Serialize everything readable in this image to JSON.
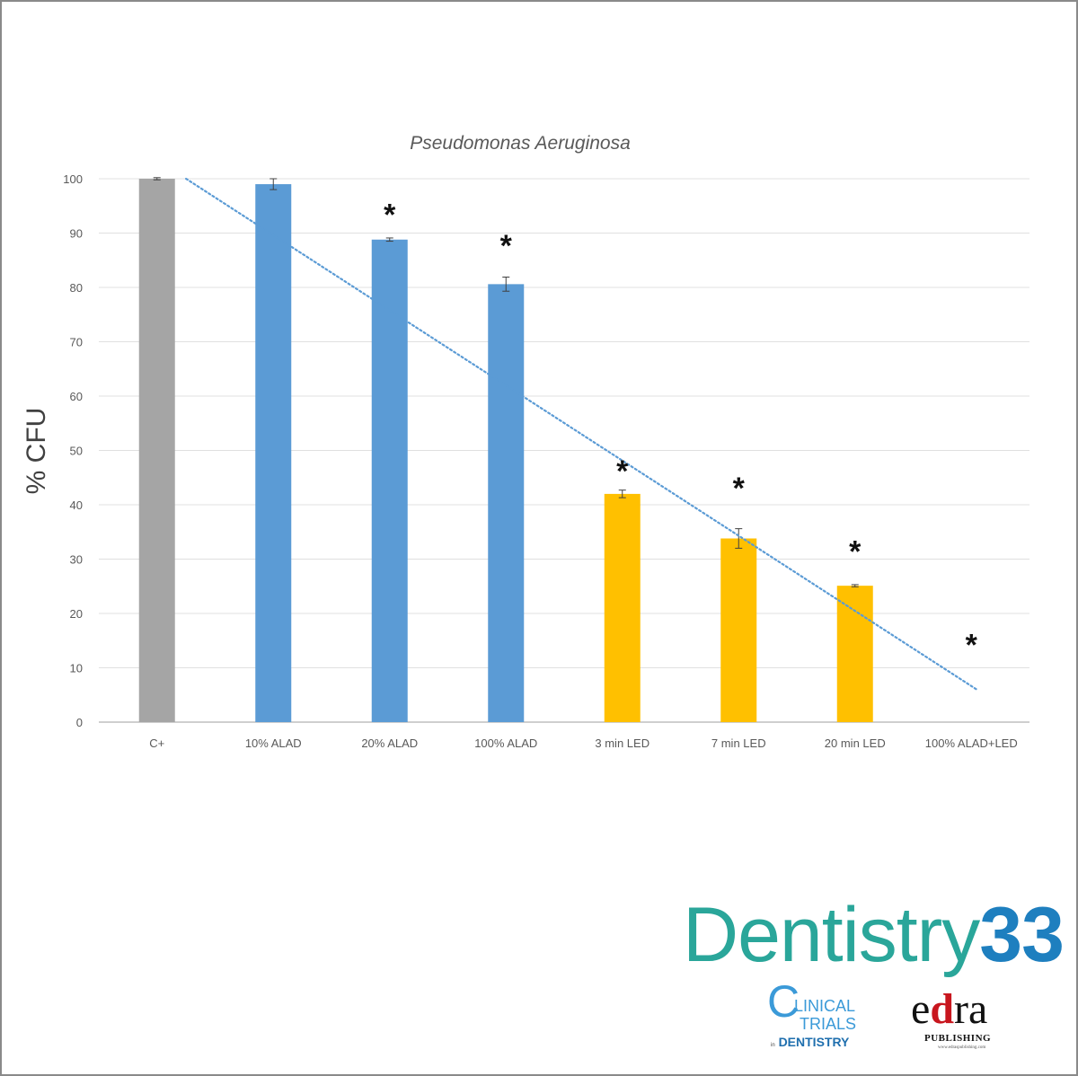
{
  "chart_data": {
    "type": "bar",
    "title": "Pseudomonas Aeruginosa",
    "xlabel": "",
    "ylabel": "% CFU",
    "ylim": [
      0,
      100
    ],
    "yticks": [
      0,
      10,
      20,
      30,
      40,
      50,
      60,
      70,
      80,
      90,
      100
    ],
    "grid": true,
    "legend": "none",
    "categories": [
      "C+",
      "10% ALAD",
      "20% ALAD",
      "100% ALAD",
      "3 min LED",
      "7 min LED",
      "20 min LED",
      "100% ALAD+LED"
    ],
    "values": [
      100,
      99,
      88.8,
      80.6,
      42,
      33.8,
      25.1,
      0
    ],
    "errors": [
      0.2,
      1.0,
      0.3,
      1.3,
      0.7,
      1.8,
      0.2,
      0
    ],
    "bar_colors": [
      "#a5a5a5",
      "#5b9bd5",
      "#5b9bd5",
      "#5b9bd5",
      "#ffc000",
      "#ffc000",
      "#ffc000",
      "#ffc000"
    ],
    "significance": [
      false,
      false,
      true,
      true,
      true,
      true,
      true,
      true
    ],
    "significance_marker": "*",
    "significance_y": [
      null,
      null,
      93.5,
      87.8,
      46.3,
      43.1,
      31.5,
      14.3
    ],
    "trendline": {
      "type": "linear",
      "start": [
        1,
        100
      ],
      "end": [
        8,
        6
      ],
      "color": "#5b9bd5"
    }
  },
  "logos": {
    "dentistry33": {
      "word": "Dentistry",
      "number": "33"
    },
    "clinical_trials": {
      "c": "C",
      "line1": "LINICAL",
      "line2": "TRIALS",
      "line3_small": "in",
      "line3": "DENTISTRY"
    },
    "edra": {
      "e": "e",
      "d": "d",
      "ra": "ra",
      "publishing": "PUBLISHING",
      "site": "www.edraspublishing.com"
    }
  }
}
